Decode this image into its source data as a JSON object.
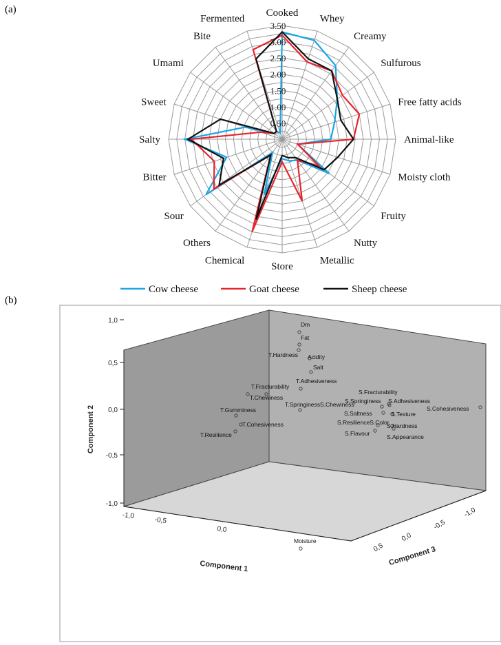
{
  "panels": {
    "a_label": "(a)",
    "b_label": "(b)"
  },
  "chart_data": [
    {
      "type": "radar",
      "categories": [
        "Cooked",
        "Whey",
        "Creamy",
        "Sulfurous",
        "Free fatty acids",
        "Animal-like",
        "Moisty cloth",
        "Fruity",
        "Nutty",
        "Metallic",
        "Store",
        "Chemical",
        "Others",
        "Sour",
        "Bitter",
        "Salty",
        "Sweet",
        "Umami",
        "Bite",
        "Fermented"
      ],
      "radial_ticks": [
        "0.50",
        "1.00",
        "1.50",
        "2.00",
        "2.50",
        "3.00",
        "3.50"
      ],
      "rlim": [
        0,
        3.5
      ],
      "series": [
        {
          "name": "Cow cheese",
          "color": "#1aa5e6",
          "values": [
            3.3,
            3.2,
            2.8,
            2.1,
            1.7,
            1.5,
            0.5,
            1.8,
            0.8,
            0.7,
            0.6,
            1.8,
            0.5,
            2.9,
            1.8,
            3.0,
            1.2,
            0.3,
            0.3,
            0.2
          ]
        },
        {
          "name": "Goat cheese",
          "color": "#e8242a",
          "values": [
            3.2,
            2.5,
            2.6,
            2.3,
            2.5,
            2.2,
            0.5,
            1.4,
            0.8,
            2.0,
            0.7,
            3.0,
            0.6,
            2.6,
            2.2,
            2.8,
            0.7,
            0.3,
            0.3,
            2.9
          ]
        },
        {
          "name": "Sheep cheese",
          "color": "#111111",
          "values": [
            3.3,
            2.6,
            2.6,
            2.1,
            1.9,
            2.2,
            1.8,
            1.6,
            0.7,
            0.6,
            0.5,
            2.6,
            0.6,
            2.4,
            1.9,
            2.9,
            2.0,
            0.3,
            0.3,
            2.6
          ]
        }
      ]
    },
    {
      "type": "scatter",
      "xlabel": "Component 1",
      "ylabel": "Component 2",
      "zlabel": "Component 3",
      "y_ticks": [
        "1,0",
        "0,5",
        "0,0",
        "-0,5",
        "-1,0"
      ],
      "x_ticks": [
        "-1,0",
        "-0,5",
        "0,0"
      ],
      "z_ticks": [
        "0,5",
        "0,0",
        "-0,5",
        "-1,0"
      ],
      "points": [
        {
          "label": "Dm"
        },
        {
          "label": "Fat"
        },
        {
          "label": "T.Hardness"
        },
        {
          "label": "Acidity"
        },
        {
          "label": "Salt"
        },
        {
          "label": "T.Adhesiveness"
        },
        {
          "label": "T.Fracturability"
        },
        {
          "label": "T.Chewiness"
        },
        {
          "label": "T.SpringinessS.Chewiness"
        },
        {
          "label": "T.Gumminess"
        },
        {
          "label": "T.Cohesiveness"
        },
        {
          "label": "T.Resilience"
        },
        {
          "label": "S.Fracturability"
        },
        {
          "label": "S.Springiness"
        },
        {
          "label": "S.Adhesiveness"
        },
        {
          "label": "S.Cohesiveness"
        },
        {
          "label": "S.Saltness"
        },
        {
          "label": "S.Texture"
        },
        {
          "label": "S.ResilienceS.Color"
        },
        {
          "label": "S.Hardness"
        },
        {
          "label": "S.Flavour"
        },
        {
          "label": "S.Appearance"
        },
        {
          "label": "Moisture"
        }
      ]
    }
  ]
}
